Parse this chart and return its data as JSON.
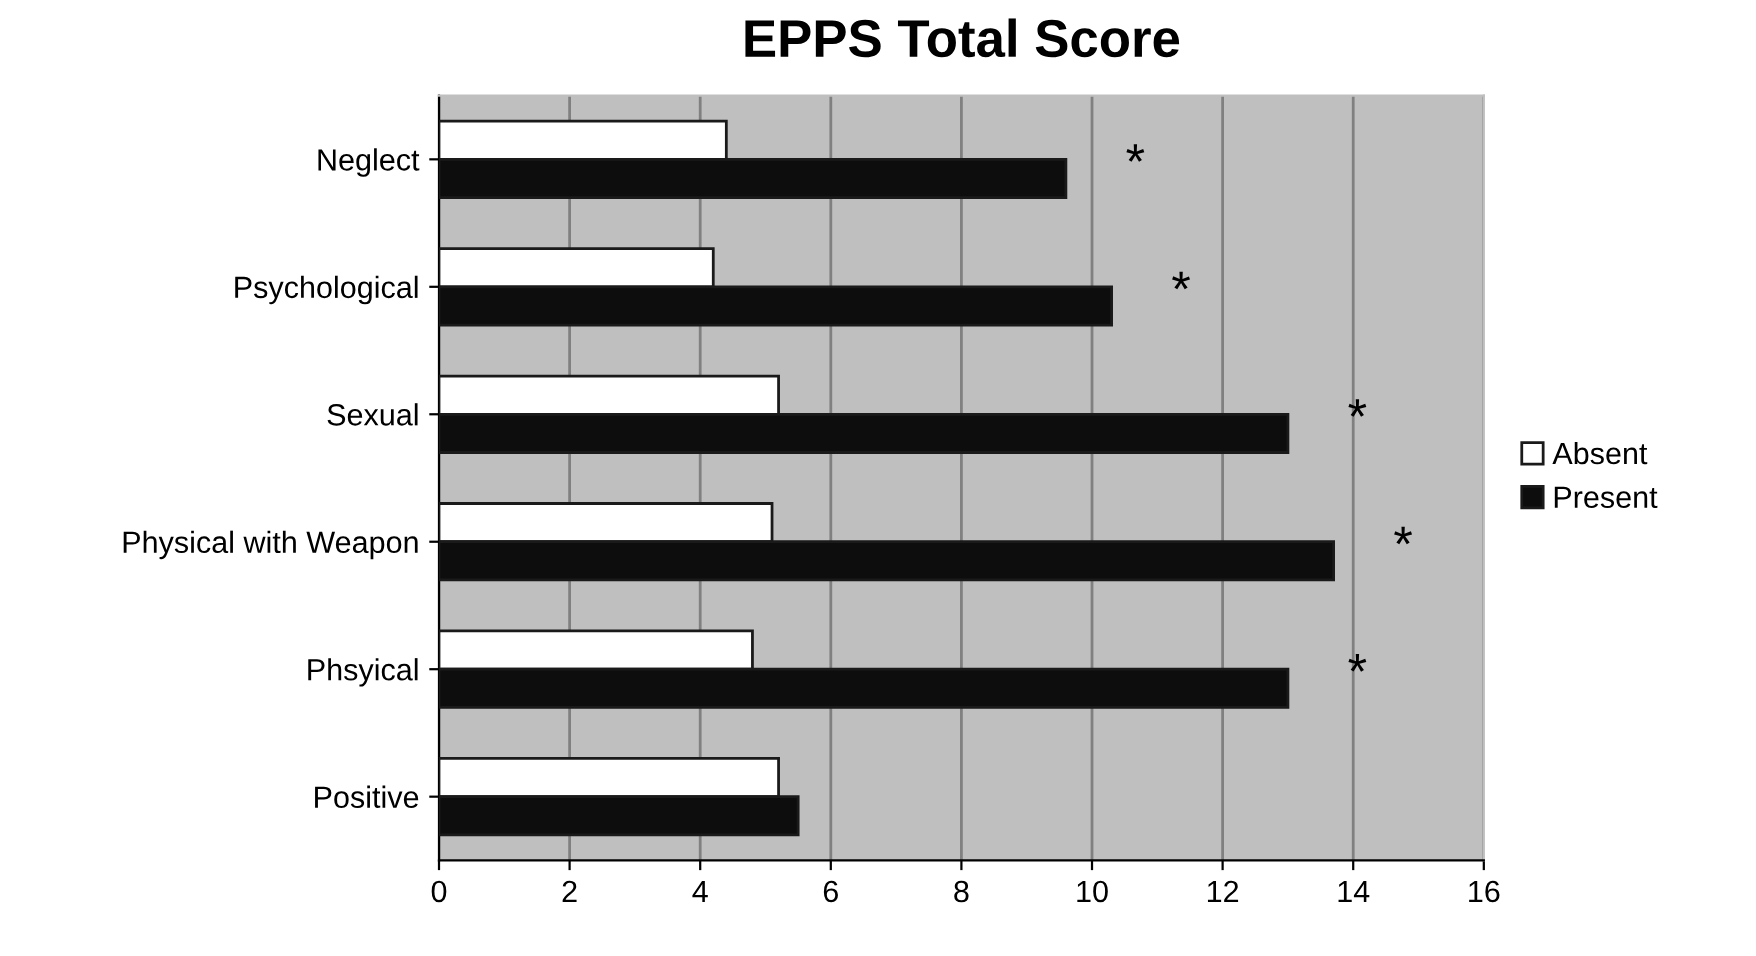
{
  "chart_data": {
    "type": "bar",
    "orientation": "horizontal",
    "title": "EPPS Total Score",
    "categories": [
      "Neglect",
      "Psychological",
      "Sexual",
      "Physical with Weapon",
      "Phsyical",
      "Positive"
    ],
    "series": [
      {
        "name": "Absent",
        "color": "#ffffff",
        "values": [
          4.4,
          4.2,
          5.2,
          5.1,
          4.8,
          5.2
        ]
      },
      {
        "name": "Present",
        "color": "#0d0d0d",
        "values": [
          9.6,
          10.3,
          13.0,
          13.7,
          13.0,
          5.5
        ]
      }
    ],
    "xlim": [
      0,
      16
    ],
    "xticks": [
      0,
      2,
      4,
      6,
      8,
      10,
      12,
      14,
      16
    ],
    "grid": "x",
    "legend": "right",
    "annotations": [
      "*",
      "*",
      "*",
      "*",
      "*"
    ]
  }
}
